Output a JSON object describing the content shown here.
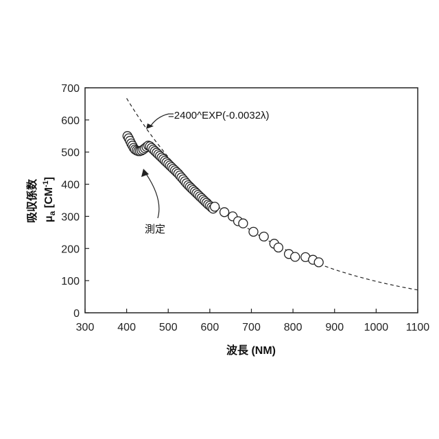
{
  "chart_data": {
    "type": "scatter",
    "title": "",
    "xlabel": "波長  (NM)",
    "ylabel_line1": "吸収係数",
    "ylabel_mu": "μ",
    "ylabel_sub": "a",
    "ylabel_unit_open": " [CM",
    "ylabel_unit_sup": "-1",
    "ylabel_unit_close": "]",
    "xlim": [
      300,
      1100
    ],
    "ylim": [
      0,
      700
    ],
    "xticks": [
      300,
      400,
      500,
      600,
      700,
      800,
      900,
      1000,
      1100
    ],
    "yticks": [
      0,
      100,
      200,
      300,
      400,
      500,
      600,
      700
    ],
    "grid": false,
    "series": [
      {
        "name": "測定",
        "style": "open-circle",
        "x": [
          402,
          405,
          408,
          411,
          414,
          417,
          420,
          424,
          428,
          432,
          436,
          440,
          444,
          448,
          452,
          456,
          460,
          464,
          468,
          472,
          476,
          480,
          484,
          488,
          492,
          496,
          500,
          504,
          508,
          512,
          516,
          520,
          524,
          528,
          532,
          536,
          540,
          544,
          548,
          552,
          556,
          560,
          564,
          568,
          572,
          576,
          580,
          584,
          588,
          592,
          596,
          600,
          604,
          608,
          612,
          635,
          655,
          668,
          680,
          705,
          730,
          755,
          765,
          790,
          805,
          830,
          848,
          862
        ],
        "y": [
          550,
          543,
          535,
          527,
          520,
          513,
          508,
          505,
          503,
          503,
          505,
          508,
          512,
          516,
          520,
          518,
          513,
          508,
          503,
          498,
          493,
          488,
          483,
          478,
          473,
          468,
          463,
          458,
          453,
          448,
          443,
          438,
          433,
          427,
          421,
          415,
          409,
          403,
          397,
          392,
          387,
          382,
          377,
          372,
          367,
          362,
          357,
          352,
          347,
          342,
          337,
          333,
          328,
          324,
          330,
          313,
          300,
          285,
          278,
          252,
          237,
          215,
          203,
          183,
          174,
          173,
          165,
          157
        ]
      },
      {
        "name": "=2400^EXP(-0.0032λ)",
        "style": "dashed-line",
        "function": "2400*exp(-0.0032*x)",
        "x_range": [
          400,
          1100
        ]
      }
    ],
    "annotations": [
      {
        "text": "=2400^EXP(-0.0032λ)"
      },
      {
        "text": "測定"
      }
    ]
  },
  "colors": {
    "axis": "#222222",
    "marker_edge": "#222222",
    "marker_fill": "#ffffff",
    "line": "#222222"
  }
}
